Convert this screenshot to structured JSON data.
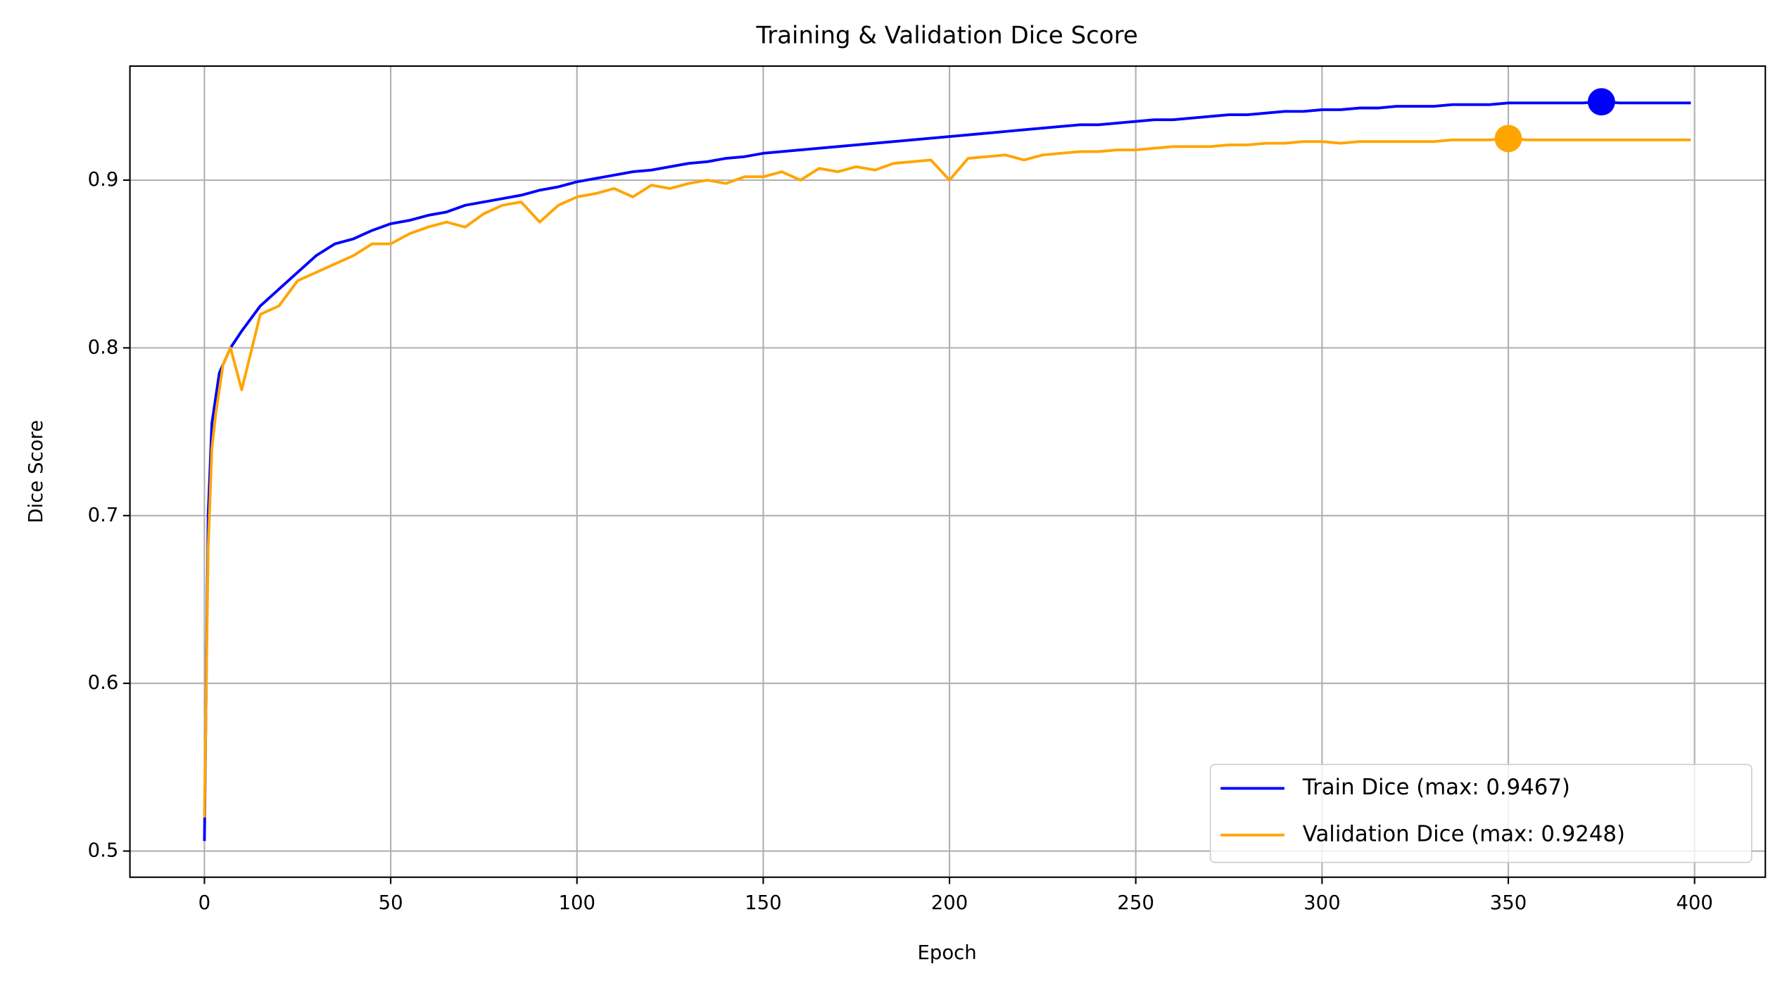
{
  "chart_data": {
    "type": "line",
    "title": "Training & Validation Dice Score",
    "x_label": "Epoch",
    "y_label": "Dice Score",
    "x": [
      0,
      1,
      2,
      3,
      4,
      5,
      7,
      10,
      15,
      20,
      25,
      30,
      35,
      40,
      45,
      50,
      55,
      60,
      65,
      70,
      75,
      80,
      85,
      90,
      95,
      100,
      105,
      110,
      115,
      120,
      125,
      130,
      135,
      140,
      145,
      150,
      155,
      160,
      165,
      170,
      175,
      180,
      185,
      190,
      195,
      200,
      205,
      210,
      215,
      220,
      225,
      230,
      235,
      240,
      245,
      250,
      255,
      260,
      265,
      270,
      275,
      280,
      285,
      290,
      295,
      300,
      305,
      310,
      315,
      320,
      325,
      330,
      335,
      340,
      345,
      350,
      355,
      360,
      365,
      370,
      375,
      380,
      385,
      390,
      395,
      399
    ],
    "series": [
      {
        "name": "Train Dice (max: 0.9467)",
        "color": "#0000ff",
        "max_x": 375,
        "max_value": 0.9467,
        "values": [
          0.506,
          0.7,
          0.755,
          0.77,
          0.785,
          0.79,
          0.8,
          0.81,
          0.825,
          0.835,
          0.845,
          0.855,
          0.862,
          0.865,
          0.87,
          0.874,
          0.876,
          0.879,
          0.881,
          0.885,
          0.887,
          0.889,
          0.891,
          0.894,
          0.896,
          0.899,
          0.901,
          0.903,
          0.905,
          0.906,
          0.908,
          0.91,
          0.911,
          0.913,
          0.914,
          0.916,
          0.917,
          0.918,
          0.919,
          0.92,
          0.921,
          0.922,
          0.923,
          0.924,
          0.925,
          0.926,
          0.927,
          0.928,
          0.929,
          0.93,
          0.931,
          0.932,
          0.933,
          0.933,
          0.934,
          0.935,
          0.936,
          0.936,
          0.937,
          0.938,
          0.939,
          0.939,
          0.94,
          0.941,
          0.941,
          0.942,
          0.942,
          0.943,
          0.943,
          0.944,
          0.944,
          0.944,
          0.945,
          0.945,
          0.945,
          0.946,
          0.946,
          0.946,
          0.946,
          0.946,
          0.9467,
          0.946,
          0.946,
          0.946,
          0.946,
          0.946
        ]
      },
      {
        "name": "Validation Dice (max: 0.9248)",
        "color": "#ffa500",
        "max_x": 350,
        "max_value": 0.9248,
        "values": [
          0.52,
          0.68,
          0.74,
          0.76,
          0.775,
          0.79,
          0.8,
          0.775,
          0.82,
          0.825,
          0.84,
          0.845,
          0.85,
          0.855,
          0.862,
          0.862,
          0.868,
          0.872,
          0.875,
          0.872,
          0.88,
          0.885,
          0.887,
          0.875,
          0.885,
          0.89,
          0.892,
          0.895,
          0.89,
          0.897,
          0.895,
          0.898,
          0.9,
          0.898,
          0.902,
          0.902,
          0.905,
          0.9,
          0.907,
          0.905,
          0.908,
          0.906,
          0.91,
          0.911,
          0.912,
          0.9,
          0.913,
          0.914,
          0.915,
          0.912,
          0.915,
          0.916,
          0.917,
          0.917,
          0.918,
          0.918,
          0.919,
          0.92,
          0.92,
          0.92,
          0.921,
          0.921,
          0.922,
          0.922,
          0.923,
          0.923,
          0.922,
          0.923,
          0.923,
          0.923,
          0.923,
          0.923,
          0.924,
          0.924,
          0.924,
          0.9248,
          0.924,
          0.924,
          0.924,
          0.924,
          0.924,
          0.924,
          0.924,
          0.924,
          0.924,
          0.924
        ]
      }
    ],
    "xlim": [
      -20,
      419
    ],
    "ylim": [
      0.4844,
      0.968
    ],
    "xticks": [
      0,
      50,
      100,
      150,
      200,
      250,
      300,
      350,
      400
    ],
    "yticks": [
      0.5,
      0.6,
      0.7,
      0.8,
      0.9
    ],
    "grid": true,
    "legend": "lower right"
  }
}
